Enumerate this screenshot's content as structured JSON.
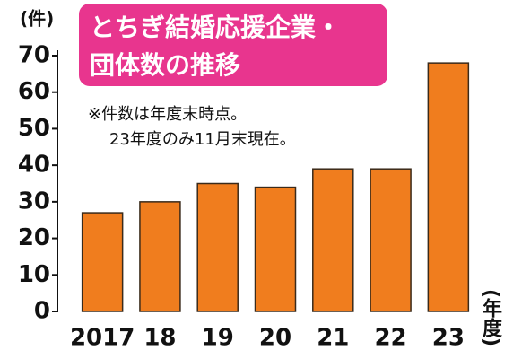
{
  "chart_data": {
    "type": "bar",
    "title": [
      "とちぎ結婚応援企業・",
      "団体数の推移"
    ],
    "note": [
      "※件数は年度末時点。",
      "23年度のみ11月末現在。"
    ],
    "y_label": "(件)",
    "x_label": "(年度)",
    "categories": [
      "2017",
      "18",
      "19",
      "20",
      "21",
      "22",
      "23"
    ],
    "values": [
      27,
      30,
      35,
      34,
      39,
      39,
      68
    ],
    "color": "#f07d1e",
    "ylim": [
      0,
      70
    ],
    "yticks": [
      0,
      10,
      20,
      30,
      40,
      50,
      60,
      70
    ],
    "grid": false
  }
}
